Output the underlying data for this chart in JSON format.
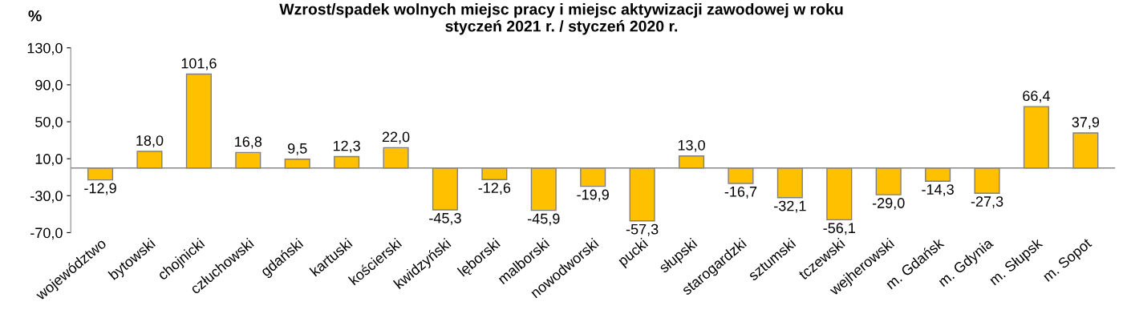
{
  "chart_data": {
    "type": "bar",
    "title": "Wzrost/spadek wolnych miejsc pracy i miejsc aktywizacji zawodowej w roku\nstyczeń 2021 r. / styczeń 2020 r.",
    "ylabel": "%",
    "categories": [
      "województwo",
      "bytowski",
      "chojnicki",
      "człuchowski",
      "gdański",
      "kartuski",
      "kościerski",
      "kwidzyński",
      "lęborski",
      "malborski",
      "nowodworski",
      "pucki",
      "słupski",
      "starogardzki",
      "sztumski",
      "tczewski",
      "wejherowski",
      "m. Gdańsk",
      "m. Gdynia",
      "m. Słupsk",
      "m. Sopot"
    ],
    "values": [
      -12.9,
      18.0,
      101.6,
      16.8,
      9.5,
      12.3,
      22.0,
      -45.3,
      -12.6,
      -45.9,
      -19.9,
      -57.3,
      13.0,
      -16.7,
      -32.1,
      -56.1,
      -29.0,
      -14.3,
      -27.3,
      66.4,
      37.9
    ],
    "value_labels": [
      "-12,9",
      "18,0",
      "101,6",
      "16,8",
      "9,5",
      "12,3",
      "22,0",
      "-45,3",
      "-12,6",
      "-45,9",
      "-19,9",
      "-57,3",
      "13,0",
      "-16,7",
      "-32,1",
      "-56,1",
      "-29,0",
      "-14,3",
      "-27,3",
      "66,4",
      "37,9"
    ],
    "color": "#ffc000",
    "ylim": [
      -70,
      130
    ],
    "yticks": [
      {
        "value": -70,
        "label": "-70,0"
      },
      {
        "value": -30,
        "label": "-30,0"
      },
      {
        "value": 10,
        "label": "10,0"
      },
      {
        "value": 50,
        "label": "50,0"
      },
      {
        "value": 90,
        "label": "90,0"
      },
      {
        "value": 130,
        "label": "130,0"
      }
    ],
    "grid": false,
    "legend": false
  }
}
